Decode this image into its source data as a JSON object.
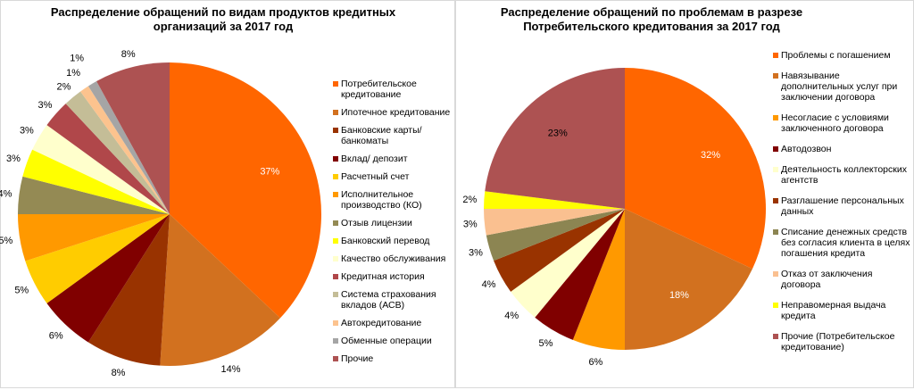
{
  "chart_data": [
    {
      "type": "pie",
      "title": "Распределение обращений по видам продуктов кредитных организаций за 2017 год",
      "legend_position": "right",
      "categories": [
        "Потребительское кредитование",
        "Ипотечное кредитование",
        "Банковские карты/банкоматы",
        "Вклад/ депозит",
        "Расчетный счет",
        "Исполнительное производство (КО)",
        "Отзыв лицензии",
        "Банковский перевод",
        "Качество обслуживания",
        "Кредитная история",
        "Система страхования вкладов (АСВ)",
        "Автокредитование",
        "Обменные операции",
        "Прочие"
      ],
      "values": [
        37,
        14,
        8,
        6,
        5,
        5,
        4,
        3,
        3,
        3,
        2,
        1,
        1,
        8
      ],
      "labels": [
        "37%",
        "14%",
        "8%",
        "6%",
        "5%",
        "5%",
        "4%",
        "3%",
        "3%",
        "3%",
        "2%",
        "1%",
        "1%",
        "8%"
      ],
      "colors": [
        "#ff6600",
        "#d2711f",
        "#993300",
        "#800000",
        "#ffcc00",
        "#ff9900",
        "#948a54",
        "#ffff00",
        "#ffffcc",
        "#b0474a",
        "#c4bd97",
        "#fcc38e",
        "#a5a5a5",
        "#ad5252"
      ]
    },
    {
      "type": "pie",
      "title": "Распределение обращений по проблемам в разрезе Потребительского кредитования за 2017 год",
      "legend_position": "right",
      "categories": [
        "Проблемы с погашением",
        "Навязывание дополнительных услуг при заключении договора",
        "Несогласие с условиями заключенного договора",
        "Автодозвон",
        "Деятельность коллекторских агентств",
        "Разглашение персональных данных",
        "Списание денежных средств без согласия клиента в целях погашения кредита",
        "Отказ от заключения договора",
        "Неправомерная выдача кредита",
        "Прочие (Потребительское кредитование)"
      ],
      "values": [
        32,
        18,
        6,
        5,
        4,
        4,
        3,
        3,
        2,
        23
      ],
      "labels": [
        "32%",
        "18%",
        "6%",
        "5%",
        "4%",
        "4%",
        "3%",
        "3%",
        "2%",
        "23%"
      ],
      "colors": [
        "#ff6600",
        "#d2711f",
        "#ff9900",
        "#800000",
        "#ffffcc",
        "#993300",
        "#8c8552",
        "#fac090",
        "#ffff00",
        "#ad5252"
      ]
    }
  ]
}
